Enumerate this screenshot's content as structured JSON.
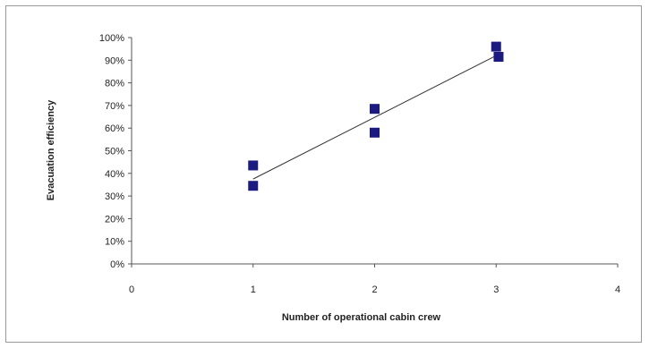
{
  "chart_data": {
    "type": "scatter",
    "title": "",
    "xlabel": "Number of operational cabin crew",
    "ylabel": "Evacuation efficiency",
    "xlim": [
      0,
      4
    ],
    "ylim": [
      0,
      100
    ],
    "x_ticks": [
      "0",
      "1",
      "2",
      "3",
      "4"
    ],
    "y_ticks": [
      "0%",
      "10%",
      "20%",
      "30%",
      "40%",
      "50%",
      "60%",
      "70%",
      "80%",
      "90%",
      "100%"
    ],
    "grid": false,
    "legend": "none",
    "marker": "square",
    "marker_color": "#1a1a80",
    "trendline": {
      "type": "linear",
      "color": "#333333",
      "x": [
        1,
        3
      ],
      "y": [
        37.5,
        92
      ]
    },
    "points": [
      {
        "x": 1.0,
        "y": 43.5
      },
      {
        "x": 1.0,
        "y": 34.5
      },
      {
        "x": 2.0,
        "y": 68.5
      },
      {
        "x": 2.0,
        "y": 58.0
      },
      {
        "x": 3.0,
        "y": 96.0
      },
      {
        "x": 3.02,
        "y": 91.5
      }
    ]
  }
}
